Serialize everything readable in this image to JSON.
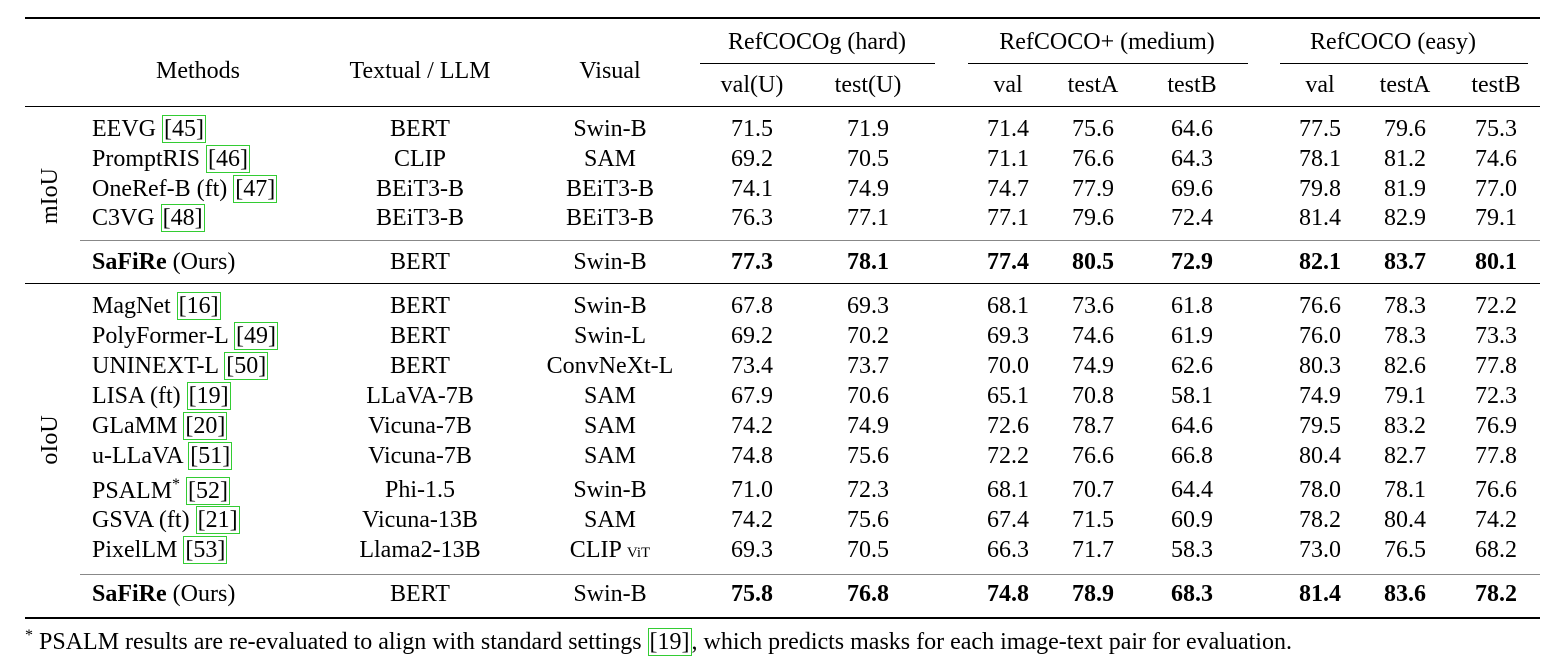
{
  "header": {
    "methods": "Methods",
    "textual": "Textual / LLM",
    "visual": "Visual",
    "groups": [
      {
        "name": "RefCOCOg (hard)",
        "columns": [
          "val(U)",
          "test(U)"
        ]
      },
      {
        "name": "RefCOCO+ (medium)",
        "columns": [
          "val",
          "testA",
          "testB"
        ]
      },
      {
        "name": "RefCOCO (easy)",
        "columns": [
          "val",
          "testA",
          "testB"
        ]
      }
    ]
  },
  "sections": [
    {
      "label": "mIoU",
      "rows": [
        {
          "method": "EEVG",
          "cite": "[45]",
          "textual": "BERT",
          "visual": "Swin-B",
          "values": [
            "71.5",
            "71.9",
            "71.4",
            "75.6",
            "64.6",
            "77.5",
            "79.6",
            "75.3"
          ]
        },
        {
          "method": "PromptRIS",
          "cite": "[46]",
          "textual": "CLIP",
          "visual": "SAM",
          "values": [
            "69.2",
            "70.5",
            "71.1",
            "76.6",
            "64.3",
            "78.1",
            "81.2",
            "74.6"
          ]
        },
        {
          "method": "OneRef-B (ft)",
          "cite": "[47]",
          "textual": "BEiT3-B",
          "visual": "BEiT3-B",
          "values": [
            "74.1",
            "74.9",
            "74.7",
            "77.9",
            "69.6",
            "79.8",
            "81.9",
            "77.0"
          ]
        },
        {
          "method": "C3VG",
          "cite": "[48]",
          "textual": "BEiT3-B",
          "visual": "BEiT3-B",
          "values": [
            "76.3",
            "77.1",
            "77.1",
            "79.6",
            "72.4",
            "81.4",
            "82.9",
            "79.1"
          ]
        }
      ],
      "ours": {
        "method": "SaFiRe",
        "suffix": "(Ours)",
        "textual": "BERT",
        "visual": "Swin-B",
        "values": [
          "77.3",
          "78.1",
          "77.4",
          "80.5",
          "72.9",
          "82.1",
          "83.7",
          "80.1"
        ]
      }
    },
    {
      "label": "oIoU",
      "rows": [
        {
          "method": "MagNet",
          "cite": "[16]",
          "textual": "BERT",
          "visual": "Swin-B",
          "values": [
            "67.8",
            "69.3",
            "68.1",
            "73.6",
            "61.8",
            "76.6",
            "78.3",
            "72.2"
          ]
        },
        {
          "method": "PolyFormer-L",
          "cite": "[49]",
          "textual": "BERT",
          "visual": "Swin-L",
          "values": [
            "69.2",
            "70.2",
            "69.3",
            "74.6",
            "61.9",
            "76.0",
            "78.3",
            "73.3"
          ]
        },
        {
          "method": "UNINEXT-L",
          "cite": "[50]",
          "textual": "BERT",
          "visual": "ConvNeXt-L",
          "values": [
            "73.4",
            "73.7",
            "70.0",
            "74.9",
            "62.6",
            "80.3",
            "82.6",
            "77.8"
          ]
        },
        {
          "method": "LISA (ft)",
          "cite": "[19]",
          "textual": "LLaVA-7B",
          "visual": "SAM",
          "values": [
            "67.9",
            "70.6",
            "65.1",
            "70.8",
            "58.1",
            "74.9",
            "79.1",
            "72.3"
          ]
        },
        {
          "method": "GLaMM",
          "cite": "[20]",
          "textual": "Vicuna-7B",
          "visual": "SAM",
          "values": [
            "74.2",
            "74.9",
            "72.6",
            "78.7",
            "64.6",
            "79.5",
            "83.2",
            "76.9"
          ]
        },
        {
          "method": "u-LLaVA",
          "cite": "[51]",
          "textual": "Vicuna-7B",
          "visual": "SAM",
          "values": [
            "74.8",
            "75.6",
            "72.2",
            "76.6",
            "66.8",
            "80.4",
            "82.7",
            "77.8"
          ]
        },
        {
          "method": "PSALM",
          "mark": "*",
          "cite": "[52]",
          "textual": "Phi-1.5",
          "visual": "Swin-B",
          "values": [
            "71.0",
            "72.3",
            "68.1",
            "70.7",
            "64.4",
            "78.0",
            "78.1",
            "76.6"
          ]
        },
        {
          "method": "GSVA (ft)",
          "cite": "[21]",
          "textual": "Vicuna-13B",
          "visual": "SAM",
          "values": [
            "74.2",
            "75.6",
            "67.4",
            "71.5",
            "60.9",
            "78.2",
            "80.4",
            "74.2"
          ]
        },
        {
          "method": "PixelLM",
          "cite": "[53]",
          "textual": "Llama2-13B",
          "visual": "CLIP",
          "visual_note": "ViT",
          "values": [
            "69.3",
            "70.5",
            "66.3",
            "71.7",
            "58.3",
            "73.0",
            "76.5",
            "68.2"
          ]
        }
      ],
      "ours": {
        "method": "SaFiRe",
        "suffix": "(Ours)",
        "textual": "BERT",
        "visual": "Swin-B",
        "values": [
          "75.8",
          "76.8",
          "74.8",
          "78.9",
          "68.3",
          "81.4",
          "83.6",
          "78.2"
        ]
      }
    }
  ],
  "footnote": {
    "mark": "*",
    "text": "PSALM results are re-evaluated to align with standard settings",
    "cite": "[19]",
    "text_after": ", which predicts masks for each image-text pair for evaluation."
  }
}
